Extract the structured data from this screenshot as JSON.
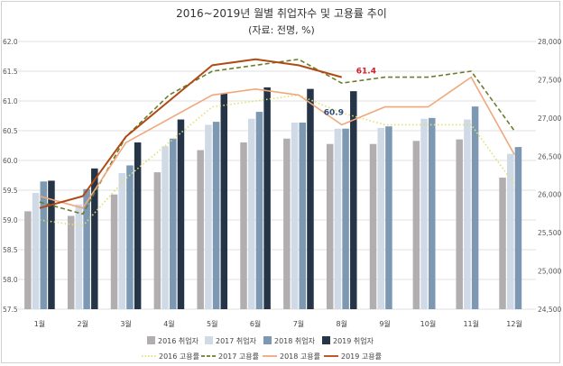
{
  "title": "2016~2019년 월별 취업자수 및 고용률 추이",
  "subtitle": "(자료: 전명, %)",
  "chart_data": {
    "type": "bar",
    "categories": [
      "1월",
      "2월",
      "3월",
      "4월",
      "5월",
      "6월",
      "7월",
      "8월",
      "9월",
      "10월",
      "11월",
      "12월"
    ],
    "y_left": {
      "ylim": [
        57.5,
        62.0
      ],
      "ticks": [
        "57.5",
        "58.0",
        "58.5",
        "59.0",
        "59.5",
        "60.0",
        "60.5",
        "61.0",
        "61.5",
        "62.0"
      ]
    },
    "y_right": {
      "ylim": [
        24500,
        28000
      ],
      "ticks": [
        "24,500",
        "25,000",
        "25,500",
        "26,000",
        "26,500",
        "27,000",
        "27,500",
        "28,000"
      ]
    },
    "bar_series": [
      {
        "name": "2016 취업자",
        "color": "#b2aeb0",
        "values": [
          25780,
          25720,
          26000,
          26290,
          26580,
          26680,
          26730,
          26660,
          26660,
          26700,
          26720,
          26220
        ]
      },
      {
        "name": "2017 취업자",
        "color": "#d0d9e6",
        "values": [
          26020,
          25870,
          26280,
          26630,
          26910,
          26990,
          26940,
          26860,
          26870,
          26990,
          26980,
          26530
        ]
      },
      {
        "name": "2018 취업자",
        "color": "#7d98b3",
        "values": [
          26170,
          26070,
          26380,
          26730,
          26950,
          27080,
          26940,
          26860,
          26890,
          27000,
          27150,
          26620
        ]
      },
      {
        "name": "2019 취업자",
        "color": "#253447",
        "values": [
          26180,
          26340,
          26680,
          26980,
          27320,
          27400,
          27380,
          27350,
          null,
          null,
          null,
          null
        ]
      }
    ],
    "line_series": [
      {
        "name": "2016 고용률",
        "color": "#e0e070",
        "dash": "dotted",
        "values": [
          59.0,
          58.9,
          59.7,
          60.3,
          60.9,
          61.0,
          61.1,
          60.8,
          60.6,
          60.6,
          60.6,
          59.6
        ]
      },
      {
        "name": "2017 고용률",
        "color": "#6b7d2e",
        "dash": "dashed",
        "values": [
          59.3,
          59.1,
          60.4,
          61.1,
          61.5,
          61.6,
          61.7,
          61.3,
          61.4,
          61.4,
          61.5,
          60.5
        ]
      },
      {
        "name": "2018 고용률",
        "color": "#f0a87a",
        "dash": "solid",
        "values": [
          59.4,
          59.2,
          60.3,
          60.7,
          61.1,
          61.2,
          61.1,
          60.6,
          60.9,
          60.9,
          61.4,
          60.1
        ]
      },
      {
        "name": "2019 고용률",
        "color": "#b04a15",
        "dash": "solid",
        "values": [
          59.2,
          59.4,
          60.4,
          61.0,
          61.6,
          61.7,
          61.6,
          61.4,
          null,
          null,
          null,
          null
        ]
      }
    ],
    "annotations": [
      {
        "text": "61.4",
        "color": "#d0202a",
        "month_index": 7,
        "value": 61.4
      },
      {
        "text": "60.9",
        "color": "#2d4a78",
        "month_index": 7,
        "value": 60.9
      }
    ],
    "grid": true,
    "legend_position": "bottom"
  }
}
